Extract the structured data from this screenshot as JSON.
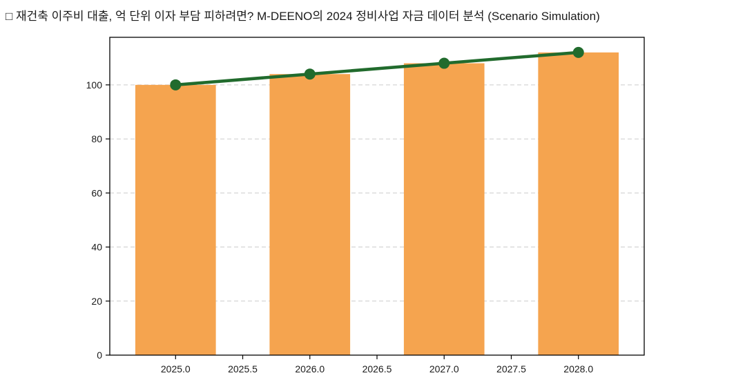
{
  "header": {
    "title": "□ 재건축 이주비 대출, 억 단위 이자 부담 피하려면? M-DEENO의 2024 정비사업 자금 데이터 분석 (Scenario Simulation)"
  },
  "chart_data": {
    "type": "bar",
    "title": "",
    "xlabel": "",
    "ylabel": "",
    "x": [
      2025,
      2026,
      2027,
      2028
    ],
    "series": [
      {
        "name": "annual-amount-bars",
        "type": "bar",
        "values": [
          100,
          104,
          108,
          112
        ]
      },
      {
        "name": "trend-line",
        "type": "line",
        "values": [
          100,
          104,
          108,
          112
        ]
      }
    ],
    "bar_width_years": 0.6,
    "xlim": [
      2024.51,
      2028.49
    ],
    "ylim": [
      0,
      117.6
    ],
    "xticks": [
      2025.0,
      2025.5,
      2026.0,
      2026.5,
      2027.0,
      2027.5,
      2028.0
    ],
    "xtick_labels": [
      "2025.0",
      "2025.5",
      "2026.0",
      "2026.5",
      "2027.0",
      "2027.5",
      "2028.0"
    ],
    "yticks": [
      0,
      20,
      40,
      60,
      80,
      100
    ],
    "ytick_labels": [
      "0",
      "20",
      "40",
      "60",
      "80",
      "100"
    ],
    "grid": "horizontal-dashed",
    "legend": "none",
    "colors": {
      "bar": "#F5A44F",
      "line": "#216B2D",
      "marker": "#216B2D",
      "gridline": "#cccccc",
      "spine": "#000000",
      "tick_label": "#1a1a1a",
      "plot_background": "#ffffff"
    },
    "marker": {
      "shape": "circle",
      "radius": 8
    },
    "line_width": 4.5
  }
}
